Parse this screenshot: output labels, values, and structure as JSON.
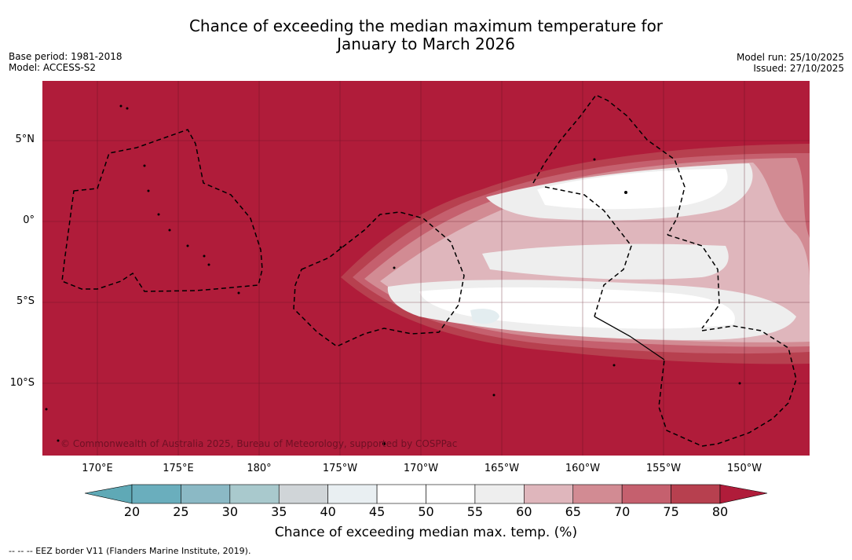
{
  "title_line1": "Chance of exceeding the median maximum temperature for",
  "title_line2": "January to March 2026",
  "base_period": "Base period: 1981-2018",
  "model": "Model: ACCESS-S2",
  "model_run": "Model run: 25/10/2025",
  "issued": "Issued: 27/10/2025",
  "copyright": "© Commonwealth of Australia 2025, Bureau of Meteorology, supported by COSPPac",
  "lat_labels": [
    "5°N",
    "0°",
    "5°S",
    "10°S"
  ],
  "lon_labels": [
    "170°E",
    "175°E",
    "180°",
    "175°W",
    "170°W",
    "165°W",
    "160°W",
    "155°W",
    "150°W"
  ],
  "colorbar_ticks": [
    "20",
    "25",
    "30",
    "35",
    "40",
    "45",
    "50",
    "55",
    "60",
    "65",
    "70",
    "75",
    "80"
  ],
  "colorbar_colors": [
    "#6aaebd",
    "#8bb9c5",
    "#a9c9cd",
    "#d0d5d8",
    "#e9eff2",
    "#ffffff",
    "#ffffff",
    "#eeeeee",
    "#dfb6bc",
    "#d28b93",
    "#c5606e",
    "#b7404f"
  ],
  "colorbar_under_color": "#5fa9b6",
  "colorbar_over_color": "#b01c3a",
  "colorbar_label": "Chance of exceeding median max. temp. (%)",
  "footnote": "-- -- -- EEZ border V11 (Flanders Marine Institute, 2019)."
}
